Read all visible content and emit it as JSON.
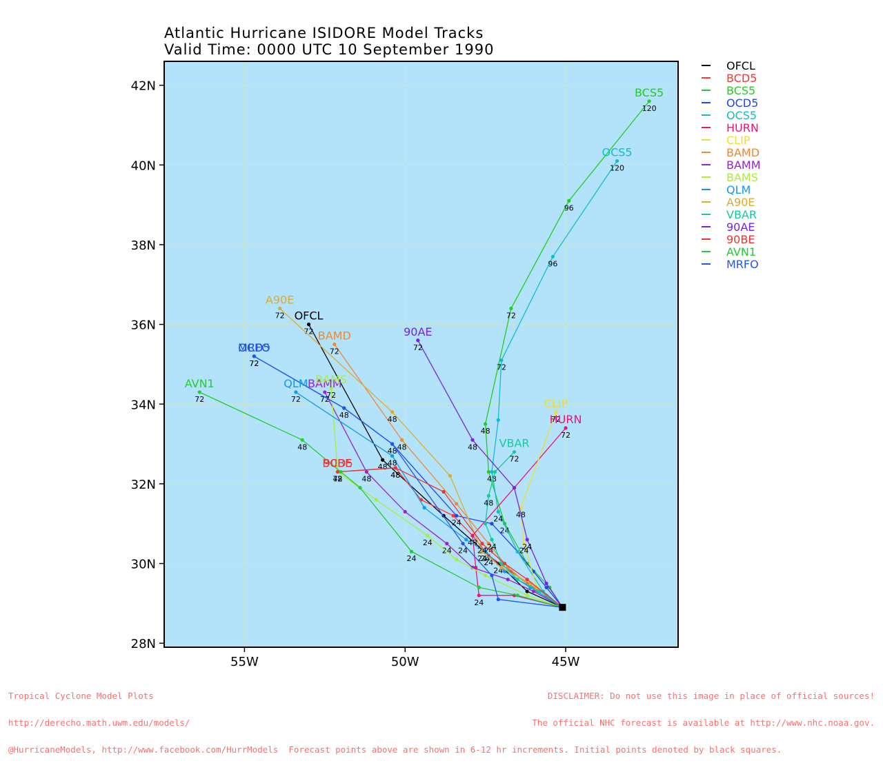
{
  "title_line1": "Atlantic Hurricane ISIDORE Model Tracks",
  "title_line2": "Valid Time: 0000 UTC 10 September 1990",
  "footer_left": [
    "Tropical Cyclone Model Plots",
    "http://derecho.math.uwm.edu/models/",
    "@HurricaneModels, http://www.facebook.com/HurrModels  Forecast points above are shown in 6-12 hr increments. Initial points denoted by black squares."
  ],
  "footer_right": [
    "DISCLAIMER: Do not use this image in place of official sources!",
    "The official NHC forecast is available at http://www.nhc.noaa.gov."
  ],
  "colors": {
    "ocean": "#b3e2fb",
    "grid": "#e8e89a",
    "footer": "#ff6e6e"
  },
  "chart_data": {
    "type": "map-track",
    "xlim": [
      -57.5,
      -41.5
    ],
    "ylim": [
      27.9,
      42.6
    ],
    "x_ticks": [
      -55,
      -50,
      -45
    ],
    "x_tick_labels": [
      "55W",
      "50W",
      "45W"
    ],
    "y_ticks": [
      28,
      30,
      32,
      34,
      36,
      38,
      40,
      42
    ],
    "y_tick_labels": [
      "28N",
      "30N",
      "32N",
      "34N",
      "36N",
      "38N",
      "40N",
      "42N"
    ],
    "grid": true,
    "legend_position": "right",
    "initial_point": [
      -45.1,
      28.9
    ],
    "series": [
      {
        "name": "OFCL",
        "color": "#000000",
        "points": [
          [
            -45.1,
            28.9
          ],
          [
            -46.2,
            29.3
          ],
          [
            -47.1,
            30.0
          ],
          [
            -48.8,
            31.2
          ],
          [
            -50.7,
            32.6
          ],
          [
            -53.0,
            36.0
          ]
        ],
        "hours": [
          [
            -47.1,
            30.0,
            "24"
          ],
          [
            -50.7,
            32.6,
            "48"
          ],
          [
            -53.0,
            36.0,
            "72"
          ]
        ]
      },
      {
        "name": "BCD5",
        "color": "#ff3333",
        "points": [
          [
            -45.1,
            28.9
          ],
          [
            -45.6,
            29.2
          ],
          [
            -46.2,
            29.5
          ],
          [
            -46.7,
            29.8
          ],
          [
            -47.4,
            30.2
          ],
          [
            -47.9,
            30.7
          ],
          [
            -48.5,
            31.2
          ],
          [
            -49.5,
            31.6
          ],
          [
            -50.3,
            32.4
          ],
          [
            -52.1,
            32.3
          ]
        ],
        "hours": [
          [
            -47.4,
            30.2,
            "24"
          ],
          [
            -50.3,
            32.4,
            "48"
          ],
          [
            -52.1,
            32.3,
            "72"
          ]
        ]
      },
      {
        "name": "BCS5",
        "color": "#22cc22",
        "points": [
          [
            -45.1,
            28.9
          ],
          [
            -45.5,
            29.4
          ],
          [
            -46.2,
            30.0
          ],
          [
            -46.9,
            31.0
          ],
          [
            -47.4,
            32.3
          ],
          [
            -47.5,
            33.5
          ],
          [
            -46.7,
            36.4
          ],
          [
            -44.9,
            39.1
          ],
          [
            -42.4,
            41.6
          ]
        ],
        "hours": [
          [
            -46.9,
            31.0,
            "24"
          ],
          [
            -47.5,
            33.5,
            "48"
          ],
          [
            -46.7,
            36.4,
            "72"
          ],
          [
            -44.9,
            39.1,
            "96"
          ],
          [
            -42.4,
            41.6,
            "120"
          ]
        ]
      },
      {
        "name": "OCD5",
        "color": "#2244ee",
        "points": [
          [
            -45.1,
            28.9
          ],
          [
            -45.6,
            29.4
          ],
          [
            -46.0,
            29.8
          ],
          [
            -46.5,
            30.3
          ],
          [
            -47.3,
            31.0
          ],
          [
            -48.4,
            31.2
          ],
          [
            -50.4,
            33.0
          ],
          [
            -51.9,
            33.9
          ],
          [
            -54.7,
            35.2
          ]
        ],
        "hours": [
          [
            -48.4,
            31.2,
            "24"
          ],
          [
            -50.4,
            33.0,
            "48"
          ],
          [
            -54.7,
            35.2,
            "72"
          ]
        ]
      },
      {
        "name": "OCS5",
        "color": "#11bbcc",
        "points": [
          [
            -45.1,
            28.9
          ],
          [
            -45.7,
            29.3
          ],
          [
            -46.5,
            30.3
          ],
          [
            -47.1,
            31.3
          ],
          [
            -47.3,
            32.3
          ],
          [
            -47.1,
            33.6
          ],
          [
            -47.0,
            35.1
          ],
          [
            -45.4,
            37.7
          ],
          [
            -43.4,
            40.1
          ]
        ],
        "hours": [
          [
            -47.1,
            31.3,
            "24"
          ],
          [
            -47.3,
            32.3,
            "48"
          ],
          [
            -47.0,
            35.1,
            "72"
          ],
          [
            -45.4,
            37.7,
            "96"
          ],
          [
            -43.4,
            40.1,
            "120"
          ]
        ]
      },
      {
        "name": "HURN",
        "color": "#ee1177",
        "points": [
          [
            -45.1,
            28.9
          ],
          [
            -46.6,
            29.2
          ],
          [
            -47.7,
            29.2
          ],
          [
            -47.8,
            29.9
          ],
          [
            -47.9,
            30.7
          ],
          [
            -46.6,
            31.9
          ],
          [
            -45.0,
            33.4
          ]
        ],
        "hours": [
          [
            -47.7,
            29.2,
            "24"
          ],
          [
            -47.9,
            30.7,
            "48"
          ],
          [
            -45.0,
            33.4,
            "72"
          ]
        ]
      },
      {
        "name": "CLIP",
        "color": "#eedd33",
        "points": [
          [
            -45.1,
            28.9
          ],
          [
            -45.9,
            29.4
          ],
          [
            -46.3,
            30.5
          ],
          [
            -46.4,
            31.4
          ],
          [
            -45.3,
            33.8
          ]
        ],
        "hours": [
          [
            -46.3,
            30.5,
            "24"
          ],
          [
            -46.4,
            31.4,
            "48"
          ],
          [
            -45.3,
            33.8,
            "72"
          ]
        ]
      },
      {
        "name": "BAMD",
        "color": "#ee8833",
        "points": [
          [
            -45.1,
            28.9
          ],
          [
            -45.9,
            29.3
          ],
          [
            -46.8,
            29.9
          ],
          [
            -47.4,
            30.5
          ],
          [
            -48.4,
            31.5
          ],
          [
            -50.1,
            33.1
          ],
          [
            -52.2,
            35.5
          ]
        ],
        "hours": [
          [
            -47.4,
            30.5,
            "24"
          ],
          [
            -50.1,
            33.1,
            "48"
          ],
          [
            -52.2,
            35.5,
            "72"
          ]
        ]
      },
      {
        "name": "BAMM",
        "color": "#9922cc",
        "points": [
          [
            -45.1,
            28.9
          ],
          [
            -46.0,
            29.3
          ],
          [
            -46.8,
            29.6
          ],
          [
            -47.9,
            29.9
          ],
          [
            -48.7,
            30.5
          ],
          [
            -50.0,
            31.3
          ],
          [
            -51.2,
            32.3
          ],
          [
            -52.5,
            34.3
          ]
        ],
        "hours": [
          [
            -48.7,
            30.5,
            "24"
          ],
          [
            -51.2,
            32.3,
            "48"
          ],
          [
            -52.5,
            34.3,
            "72"
          ]
        ]
      },
      {
        "name": "BAMS",
        "color": "#aaee33",
        "points": [
          [
            -45.1,
            28.9
          ],
          [
            -46.2,
            29.2
          ],
          [
            -47.5,
            29.7
          ],
          [
            -48.4,
            30.1
          ],
          [
            -49.3,
            30.7
          ],
          [
            -50.9,
            31.6
          ],
          [
            -52.1,
            32.3
          ],
          [
            -52.3,
            34.4
          ]
        ],
        "hours": [
          [
            -49.3,
            30.7,
            "24"
          ],
          [
            -52.1,
            32.3,
            "48"
          ],
          [
            -52.3,
            34.4,
            "72"
          ]
        ]
      },
      {
        "name": "QLM",
        "color": "#1199ee",
        "points": [
          [
            -45.1,
            28.9
          ],
          [
            -46.1,
            29.4
          ],
          [
            -46.9,
            29.8
          ],
          [
            -47.5,
            30.3
          ],
          [
            -48.1,
            30.6
          ],
          [
            -49.4,
            31.4
          ],
          [
            -50.4,
            32.7
          ],
          [
            -53.4,
            34.3
          ]
        ],
        "hours": [
          [
            -47.5,
            30.3,
            "24"
          ],
          [
            -50.4,
            32.7,
            "48"
          ],
          [
            -53.4,
            34.3,
            "72"
          ]
        ]
      },
      {
        "name": "A90E",
        "color": "#ddaa33",
        "points": [
          [
            -45.1,
            28.9
          ],
          [
            -46.1,
            29.5
          ],
          [
            -47.0,
            29.9
          ],
          [
            -47.6,
            30.3
          ],
          [
            -48.6,
            32.2
          ],
          [
            -50.4,
            33.8
          ],
          [
            -53.9,
            36.4
          ]
        ],
        "hours": [
          [
            -47.6,
            30.3,
            "24"
          ],
          [
            -50.4,
            33.8,
            "48"
          ],
          [
            -53.9,
            36.4,
            "72"
          ]
        ]
      },
      {
        "name": "VBAR",
        "color": "#11cc99",
        "points": [
          [
            -45.1,
            28.9
          ],
          [
            -45.8,
            29.3
          ],
          [
            -46.5,
            29.6
          ],
          [
            -47.0,
            30.0
          ],
          [
            -47.3,
            30.6
          ],
          [
            -47.5,
            31.0
          ],
          [
            -47.4,
            31.7
          ],
          [
            -47.2,
            32.3
          ],
          [
            -46.6,
            32.8
          ]
        ],
        "hours": [
          [
            -47.3,
            30.6,
            "24"
          ],
          [
            -47.4,
            31.7,
            "48"
          ],
          [
            -46.6,
            32.8,
            "72"
          ]
        ]
      },
      {
        "name": "90AE",
        "color": "#7722dd",
        "points": [
          [
            -45.1,
            28.9
          ],
          [
            -45.6,
            29.5
          ],
          [
            -46.2,
            30.6
          ],
          [
            -46.6,
            31.9
          ],
          [
            -47.9,
            33.1
          ],
          [
            -49.6,
            35.6
          ]
        ],
        "hours": [
          [
            -46.2,
            30.6,
            "24"
          ],
          [
            -47.9,
            33.1,
            "48"
          ],
          [
            -49.6,
            35.6,
            "72"
          ]
        ]
      },
      {
        "name": "90BE",
        "color": "#ee3333",
        "points": [
          [
            -45.1,
            28.9
          ],
          [
            -46.2,
            29.6
          ],
          [
            -46.9,
            30.0
          ],
          [
            -47.6,
            30.5
          ],
          [
            -48.8,
            31.8
          ],
          [
            -50.3,
            32.4
          ],
          [
            -52.1,
            32.3
          ]
        ],
        "hours": [
          [
            -47.6,
            30.5,
            "24"
          ],
          [
            -50.3,
            32.4,
            "48"
          ],
          [
            -52.1,
            32.3,
            "72"
          ]
        ]
      },
      {
        "name": "AVN1",
        "color": "#22cc33",
        "points": [
          [
            -45.1,
            28.9
          ],
          [
            -46.5,
            29.2
          ],
          [
            -47.7,
            29.4
          ],
          [
            -49.8,
            30.3
          ],
          [
            -51.4,
            31.9
          ],
          [
            -52.0,
            32.3
          ],
          [
            -53.2,
            33.1
          ],
          [
            -56.4,
            34.3
          ]
        ],
        "hours": [
          [
            -49.8,
            30.3,
            "24"
          ],
          [
            -53.2,
            33.1,
            "48"
          ],
          [
            -56.4,
            34.3,
            "72"
          ]
        ]
      },
      {
        "name": "MRFO",
        "color": "#2255ee",
        "points": [
          [
            -45.1,
            28.9
          ],
          [
            -47.1,
            29.1
          ],
          [
            -47.3,
            29.7
          ],
          [
            -48.2,
            30.5
          ],
          [
            -50.4,
            33.0
          ],
          [
            -51.9,
            33.9
          ],
          [
            -54.7,
            35.2
          ]
        ],
        "hours": [
          [
            -48.2,
            30.5,
            "24"
          ],
          [
            -51.9,
            33.9,
            "48"
          ],
          [
            -54.7,
            35.2,
            "72"
          ]
        ]
      }
    ]
  }
}
